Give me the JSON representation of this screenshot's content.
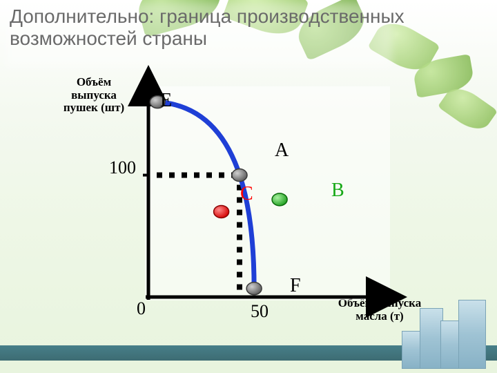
{
  "title": "Дополнительно: граница производственных возможностей страны",
  "title_fontsize": 28,
  "title_color": "#6b6b6b",
  "chart": {
    "type": "line",
    "ylabel": "Объём выпуска пушек (шт)",
    "xlabel": "Объём выпуска масла (т)",
    "label_fontsize": 17,
    "label_color": "#000000",
    "origin_label": "0",
    "xtick": {
      "value": "50",
      "pos": 50
    },
    "ytick": {
      "value": "100",
      "pos": 100
    },
    "tick_fontsize": 26,
    "xlim": [
      0,
      90
    ],
    "ylim": [
      0,
      170
    ],
    "axis_color": "#000000",
    "axis_width": 5,
    "curve": {
      "color": "#1f3fd6",
      "width": 7,
      "start": {
        "x": 5,
        "y": 160
      },
      "end": {
        "x": 58,
        "y": 7
      },
      "ctrl": {
        "x": 58,
        "y": 155
      }
    },
    "dashed_color": "#000000",
    "points": {
      "E": {
        "x": 5,
        "y": 160,
        "fill": "#7a7a7a",
        "stroke": "#3a3a3a",
        "label_color": "#000000",
        "fontsize": 28
      },
      "A": {
        "x": 50,
        "y": 100,
        "fill": "#7a7a7a",
        "stroke": "#3a3a3a",
        "label_color": "#000000",
        "fontsize": 28
      },
      "F": {
        "x": 58,
        "y": 7,
        "fill": "#7a7a7a",
        "stroke": "#3a3a3a",
        "label_color": "#000000",
        "fontsize": 28
      },
      "C": {
        "x": 40,
        "y": 70,
        "fill": "#ff0000",
        "stroke": "#880000",
        "label_color": "#ff0000",
        "fontsize": 28
      },
      "B": {
        "x": 72,
        "y": 80,
        "fill": "#2bbf2b",
        "stroke": "#0a6a0a",
        "label_color": "#16a816",
        "fontsize": 28
      }
    },
    "point_radius": 10
  },
  "background_color": "#f2f8eb"
}
